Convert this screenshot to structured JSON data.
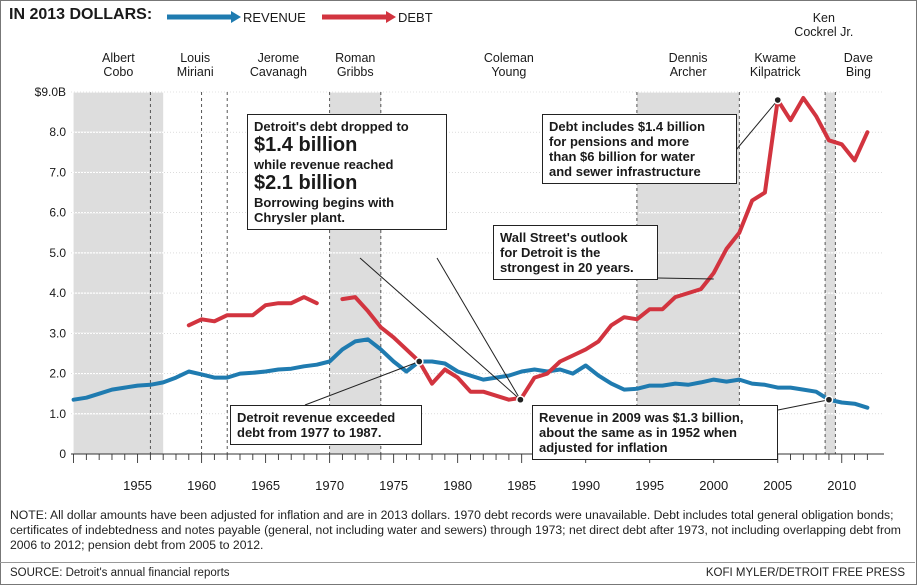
{
  "header": {
    "title": "IN 2013 DOLLARS:",
    "legend_revenue": "REVENUE",
    "legend_debt": "DEBT"
  },
  "colors": {
    "revenue": "#1f7bb0",
    "debt": "#d2343f",
    "band": "#dddddd"
  },
  "mayors": [
    {
      "name": [
        "Albert",
        "Cobo"
      ],
      "start": 1950,
      "end": 1957,
      "shaded": true
    },
    {
      "name": [
        "Louis",
        "Miriani"
      ],
      "start": 1957,
      "end": 1962,
      "shaded": false
    },
    {
      "name": [
        "Jerome",
        "Cavanagh"
      ],
      "start": 1962,
      "end": 1970,
      "shaded": false
    },
    {
      "name": [
        "Roman",
        "Gribbs"
      ],
      "start": 1970,
      "end": 1974,
      "shaded": true
    },
    {
      "name": [
        "Coleman",
        "Young"
      ],
      "start": 1974,
      "end": 1994,
      "shaded": false
    },
    {
      "name": [
        "Dennis",
        "Archer"
      ],
      "start": 1994,
      "end": 2002,
      "shaded": true
    },
    {
      "name": [
        "Kwame",
        "Kilpatrick"
      ],
      "start": 2002,
      "end": 2008.7,
      "shaded": false
    },
    {
      "name": [
        "Ken",
        "Cockrel Jr."
      ],
      "start": 2008.7,
      "end": 2009.5,
      "shaded": true
    },
    {
      "name": [
        "Dave",
        "Bing"
      ],
      "start": 2009.5,
      "end": 2013,
      "shaded": false
    }
  ],
  "annotations": {
    "box1": {
      "line1": "Detroit's debt dropped to",
      "big1": "$1.4 billion",
      "line2": "while revenue reached",
      "big2": "$2.1 billion",
      "line3": "Borrowing begins with",
      "line4": "Chrysler plant."
    },
    "box2": {
      "line1": "Debt includes $1.4 billion",
      "line2": "for pensions and more",
      "line3": "than $6 billion for water",
      "line4": "and sewer infrastructure"
    },
    "box3": {
      "line1": "Wall Street's outlook",
      "line2": "for Detroit is the",
      "line3": "strongest in 20 years."
    },
    "box4": {
      "line1": "Detroit revenue exceeded",
      "line2": "debt from 1977 to 1987."
    },
    "box5": {
      "line1": "Revenue in 2009 was $1.3 billion,",
      "line2": "about the same as in 1952 when",
      "line3": "adjusted for inflation"
    }
  },
  "note": "NOTE: All dollar amounts have been adjusted for inflation and are in 2013 dollars. 1970 debt records were unavailable. Debt includes total general obligation bonds; certificates of indebtedness and notes payable (general, not including water and sewers) through 1973; net direct debt after 1973, not including overlapping debt from 2006 to 2012; pension debt from 2005 to 2012.",
  "source": "SOURCE: Detroit's annual financial reports",
  "credit": "KOFI MYLER/DETROIT FREE PRESS",
  "chart_data": {
    "type": "line",
    "xlim": [
      1950,
      2013
    ],
    "ylim": [
      0,
      9
    ],
    "x_ticks": [
      1955,
      1960,
      1965,
      1970,
      1975,
      1980,
      1985,
      1990,
      1995,
      2000,
      2005,
      2010
    ],
    "y_tick_labels": [
      "0",
      "1.0",
      "2.0",
      "3.0",
      "4.0",
      "5.0",
      "6.0",
      "7.0",
      "8.0",
      "$9.0B"
    ],
    "grid": true,
    "series": [
      {
        "name": "REVENUE",
        "x": [
          1950,
          1951,
          1952,
          1953,
          1954,
          1955,
          1956,
          1957,
          1958,
          1959,
          1960,
          1961,
          1962,
          1963,
          1964,
          1965,
          1966,
          1967,
          1968,
          1969,
          1970,
          1971,
          1972,
          1973,
          1974,
          1975,
          1976,
          1977,
          1978,
          1979,
          1980,
          1981,
          1982,
          1983,
          1984,
          1985,
          1986,
          1987,
          1988,
          1989,
          1990,
          1991,
          1992,
          1993,
          1994,
          1995,
          1996,
          1997,
          1998,
          1999,
          2000,
          2001,
          2002,
          2003,
          2004,
          2005,
          2006,
          2007,
          2008,
          2009,
          2010,
          2011,
          2012
        ],
        "y": [
          1.35,
          1.4,
          1.5,
          1.6,
          1.65,
          1.7,
          1.72,
          1.78,
          1.9,
          2.05,
          1.98,
          1.9,
          1.9,
          2.0,
          2.02,
          2.05,
          2.1,
          2.12,
          2.18,
          2.22,
          2.3,
          2.6,
          2.8,
          2.85,
          2.6,
          2.3,
          2.05,
          2.3,
          2.3,
          2.25,
          2.05,
          1.95,
          1.85,
          1.9,
          1.95,
          2.05,
          2.1,
          2.05,
          2.1,
          2.0,
          2.2,
          1.95,
          1.75,
          1.6,
          1.62,
          1.7,
          1.7,
          1.75,
          1.72,
          1.78,
          1.85,
          1.8,
          1.85,
          1.75,
          1.72,
          1.65,
          1.65,
          1.6,
          1.55,
          1.35,
          1.28,
          1.25,
          1.15
        ]
      },
      {
        "name": "DEBT",
        "segments": [
          {
            "x": [
              1959,
              1960,
              1961,
              1962,
              1963,
              1964,
              1965,
              1966,
              1967,
              1968,
              1969
            ],
            "y": [
              3.2,
              3.35,
              3.3,
              3.45,
              3.45,
              3.45,
              3.7,
              3.75,
              3.75,
              3.9,
              3.75
            ]
          },
          {
            "x": [
              1971,
              1972,
              1973,
              1974,
              1975,
              1976,
              1977,
              1978,
              1979,
              1980,
              1981,
              1982,
              1983,
              1984,
              1985,
              1986,
              1987,
              1988,
              1989,
              1990,
              1991,
              1992,
              1993,
              1994,
              1995,
              1996,
              1997,
              1998,
              1999,
              2000,
              2001,
              2002,
              2003,
              2004,
              2005,
              2006,
              2007,
              2008,
              2009,
              2010,
              2011,
              2012
            ],
            "y": [
              3.85,
              3.9,
              3.55,
              3.15,
              2.9,
              2.6,
              2.3,
              1.75,
              2.1,
              1.9,
              1.55,
              1.55,
              1.45,
              1.35,
              1.4,
              1.9,
              2.0,
              2.3,
              2.45,
              2.6,
              2.8,
              3.2,
              3.4,
              3.35,
              3.6,
              3.6,
              3.9,
              4.0,
              4.1,
              4.5,
              5.1,
              5.5,
              6.3,
              6.5,
              8.8,
              8.3,
              8.85,
              8.4,
              7.8,
              7.7,
              7.3,
              8.0
            ]
          }
        ]
      }
    ]
  }
}
